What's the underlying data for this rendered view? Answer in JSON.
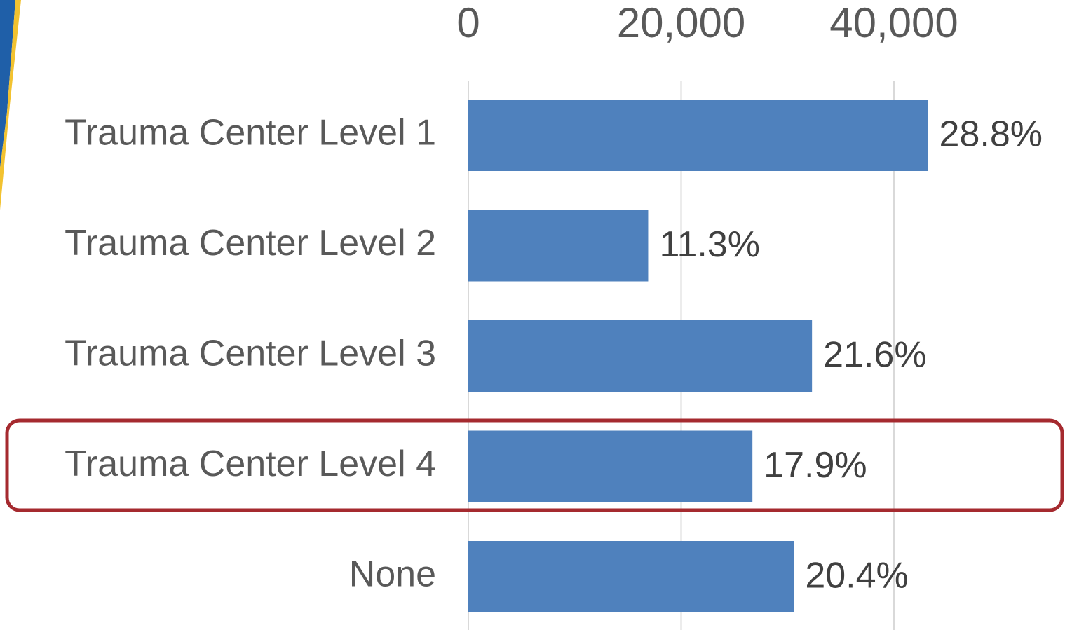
{
  "chart_data": {
    "type": "bar",
    "orientation": "horizontal",
    "categories": [
      "Trauma Center Level 1",
      "Trauma Center Level 2",
      "Trauma Center Level 3",
      "Trauma Center Level 4",
      "None"
    ],
    "values": [
      43200,
      16900,
      32300,
      26700,
      30600
    ],
    "percent_labels": [
      "28.8%",
      "11.3%",
      "21.6%",
      "17.9%",
      "20.4%"
    ],
    "color": "#4f81bd",
    "xlim": [
      0,
      60000
    ],
    "xticks": [
      0,
      {
        "value": 20000,
        "label": "20,000"
      },
      {
        "value": 40000,
        "label": "40,000"
      }
    ],
    "grid": true
  }
}
